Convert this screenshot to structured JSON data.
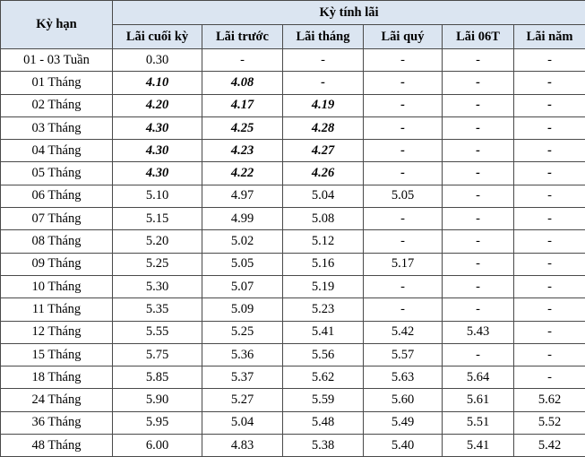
{
  "header": {
    "term": "Kỳ hạn",
    "group": "Kỳ tính lãi",
    "columns": [
      "Lãi cuối kỳ",
      "Lãi trước",
      "Lãi tháng",
      "Lãi quý",
      "Lãi 06T",
      "Lãi năm"
    ]
  },
  "table": {
    "rows": [
      [
        "01 - 03 Tuần",
        "0.30",
        "-",
        "-",
        "-",
        "-",
        "-"
      ],
      [
        "01 Tháng",
        "4.10",
        "4.08",
        "-",
        "-",
        "-",
        "-"
      ],
      [
        "02 Tháng",
        "4.20",
        "4.17",
        "4.19",
        "-",
        "-",
        "-"
      ],
      [
        "03 Tháng",
        "4.30",
        "4.25",
        "4.28",
        "-",
        "-",
        "-"
      ],
      [
        "04 Tháng",
        "4.30",
        "4.23",
        "4.27",
        "-",
        "-",
        "-"
      ],
      [
        "05 Tháng",
        "4.30",
        "4.22",
        "4.26",
        "-",
        "-",
        "-"
      ],
      [
        "06 Tháng",
        "5.10",
        "4.97",
        "5.04",
        "5.05",
        "-",
        "-"
      ],
      [
        "07 Tháng",
        "5.15",
        "4.99",
        "5.08",
        "-",
        "-",
        "-"
      ],
      [
        "08 Tháng",
        "5.20",
        "5.02",
        "5.12",
        "-",
        "-",
        "-"
      ],
      [
        "09 Tháng",
        "5.25",
        "5.05",
        "5.16",
        "5.17",
        "-",
        "-"
      ],
      [
        "10 Tháng",
        "5.30",
        "5.07",
        "5.19",
        "-",
        "-",
        "-"
      ],
      [
        "11 Tháng",
        "5.35",
        "5.09",
        "5.23",
        "-",
        "-",
        "-"
      ],
      [
        "12 Tháng",
        "5.55",
        "5.25",
        "5.41",
        "5.42",
        "5.43",
        "-"
      ],
      [
        "15 Tháng",
        "5.75",
        "5.36",
        "5.56",
        "5.57",
        "-",
        "-"
      ],
      [
        "18 Tháng",
        "5.85",
        "5.37",
        "5.62",
        "5.63",
        "5.64",
        "-"
      ],
      [
        "24 Tháng",
        "5.90",
        "5.27",
        "5.59",
        "5.60",
        "5.61",
        "5.62"
      ],
      [
        "36 Tháng",
        "5.95",
        "5.04",
        "5.48",
        "5.49",
        "5.51",
        "5.52"
      ],
      [
        "48 Tháng",
        "6.00",
        "4.83",
        "5.38",
        "5.40",
        "5.41",
        "5.42"
      ]
    ]
  }
}
